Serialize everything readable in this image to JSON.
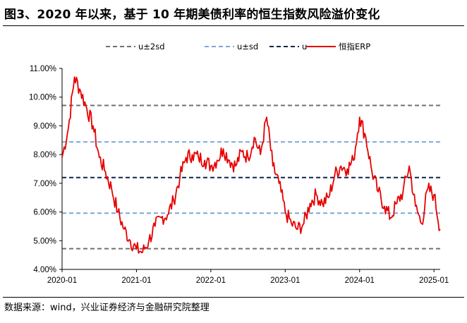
{
  "title": "图3、2020 年以来，基于 10 年期美债利率的恒生指数风险溢价变化",
  "source": "数据来源：wind，兴业证券经济与金融研究院整理",
  "chart_data": {
    "type": "line",
    "title": "图3、2020 年以来，基于 10 年期美债利率的恒生指数风险溢价变化",
    "xlabel": "",
    "ylabel": "",
    "x_ticks": [
      "2020-01",
      "2021-01",
      "2022-01",
      "2023-01",
      "2024-01",
      "2025-01"
    ],
    "y_ticks": [
      "4.00%",
      "5.00%",
      "6.00%",
      "7.00%",
      "8.00%",
      "9.00%",
      "10.00%",
      "11.00%"
    ],
    "ylim": [
      4.0,
      11.0
    ],
    "xlim": [
      "2020-01",
      "2025-02"
    ],
    "legend_position": "top",
    "grid": false,
    "series": [
      {
        "name": "恒指ERP",
        "color": "#e60000",
        "style": "solid",
        "x": [
          "2020-01",
          "2020-02",
          "2020-03",
          "2020-04",
          "2020-05",
          "2020-06",
          "2020-07",
          "2020-08",
          "2020-09",
          "2020-10",
          "2020-11",
          "2020-12",
          "2021-01",
          "2021-02",
          "2021-03",
          "2021-04",
          "2021-05",
          "2021-06",
          "2021-07",
          "2021-08",
          "2021-09",
          "2021-10",
          "2021-11",
          "2021-12",
          "2022-01",
          "2022-02",
          "2022-03",
          "2022-04",
          "2022-05",
          "2022-06",
          "2022-07",
          "2022-08",
          "2022-09",
          "2022-10",
          "2022-11",
          "2022-12",
          "2023-01",
          "2023-02",
          "2023-03",
          "2023-04",
          "2023-05",
          "2023-06",
          "2023-07",
          "2023-08",
          "2023-09",
          "2023-10",
          "2023-11",
          "2023-12",
          "2024-01",
          "2024-02",
          "2024-03",
          "2024-04",
          "2024-05",
          "2024-06",
          "2024-07",
          "2024-08",
          "2024-09",
          "2024-10",
          "2024-11",
          "2024-12",
          "2025-01",
          "2025-02"
        ],
        "values": [
          7.9,
          8.9,
          10.7,
          10.2,
          9.6,
          9.0,
          7.9,
          7.4,
          6.8,
          6.0,
          5.4,
          5.0,
          4.7,
          4.6,
          5.0,
          5.5,
          5.8,
          5.9,
          6.4,
          7.2,
          7.9,
          8.0,
          7.9,
          7.8,
          7.6,
          7.8,
          8.2,
          7.8,
          7.6,
          8.1,
          7.9,
          8.6,
          8.0,
          9.3,
          7.6,
          7.0,
          6.0,
          5.6,
          5.4,
          5.6,
          6.3,
          6.6,
          6.3,
          6.5,
          7.3,
          7.6,
          7.5,
          7.8,
          9.3,
          8.6,
          7.4,
          6.7,
          6.2,
          5.8,
          6.3,
          6.7,
          7.6,
          6.2,
          5.6,
          6.8,
          6.6,
          5.4
        ]
      },
      {
        "name": "u±2sd",
        "color": "#707070",
        "style": "dashed",
        "values": [
          4.72,
          9.71
        ]
      },
      {
        "name": "u±sd",
        "color": "#7fa6d8",
        "style": "dashed",
        "values": [
          5.96,
          8.44
        ]
      },
      {
        "name": "u",
        "color": "#10254a",
        "style": "dashed",
        "values": [
          7.2
        ]
      }
    ]
  }
}
